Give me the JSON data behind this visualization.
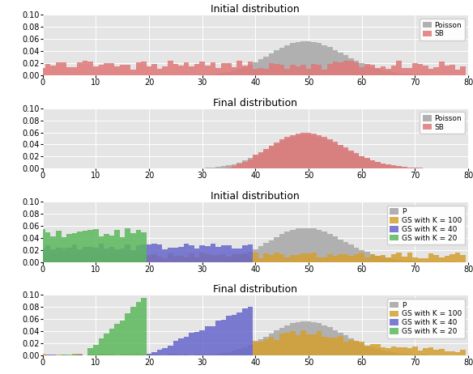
{
  "top_section_title1": "Initial distribution",
  "top_section_title2": "Final distribution",
  "bottom_section_title1": "Initial distribution",
  "bottom_section_title2": "Final distribution",
  "xlim": [
    0,
    80
  ],
  "ylim": [
    0.0,
    0.1
  ],
  "yticks": [
    0.0,
    0.02,
    0.04,
    0.06,
    0.08,
    0.1
  ],
  "xticks": [
    0,
    10,
    20,
    30,
    40,
    50,
    60,
    70,
    80
  ],
  "poisson_color": "#b0b0b0",
  "sb_color": "#e07878",
  "green_color": "#5cb85c",
  "blue_color": "#6666cc",
  "orange_color": "#d4a030",
  "brown_color": "#a07850",
  "background_color": "#e5e5e5",
  "legend_fontsize": 6.5,
  "title_fontsize": 9,
  "tick_fontsize": 7,
  "poisson_mu": 50
}
